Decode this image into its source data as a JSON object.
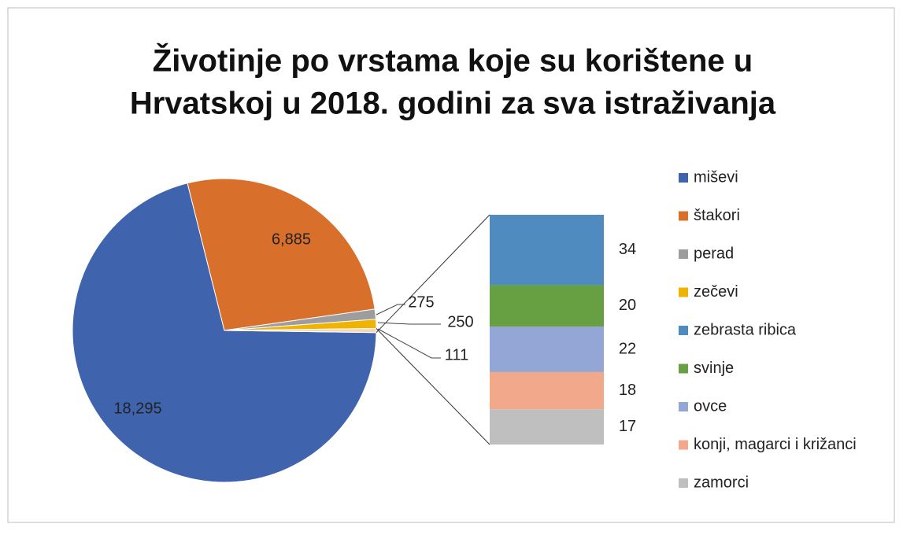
{
  "chart_data": {
    "type": "pie-of-bar",
    "title": [
      "Životinje po vrstama koje su korištene u",
      "Hrvatskoj u 2018. godini za sva istraživanja"
    ],
    "pie": {
      "categories": [
        "miševi",
        "štakori",
        "perad",
        "zečevi",
        null
      ],
      "values": [
        18295,
        6885,
        275,
        250,
        111
      ],
      "value_labels": [
        "18,295",
        "6,885",
        "275",
        "250",
        "111"
      ],
      "colors": [
        "#3f64ad",
        "#d8702c",
        "#9d9d9d",
        "#efb300",
        "#f6d8b9"
      ]
    },
    "bar": {
      "categories": [
        "zebrasta ribica",
        "svinje",
        "ovce",
        "konji, magarci i križanci",
        "zamorci"
      ],
      "values": [
        34,
        20,
        22,
        18,
        17
      ],
      "colors": [
        "#508bc0",
        "#67a043",
        "#93a6d6",
        "#f2a98b",
        "#bfbfbf"
      ]
    },
    "legend": "right"
  }
}
